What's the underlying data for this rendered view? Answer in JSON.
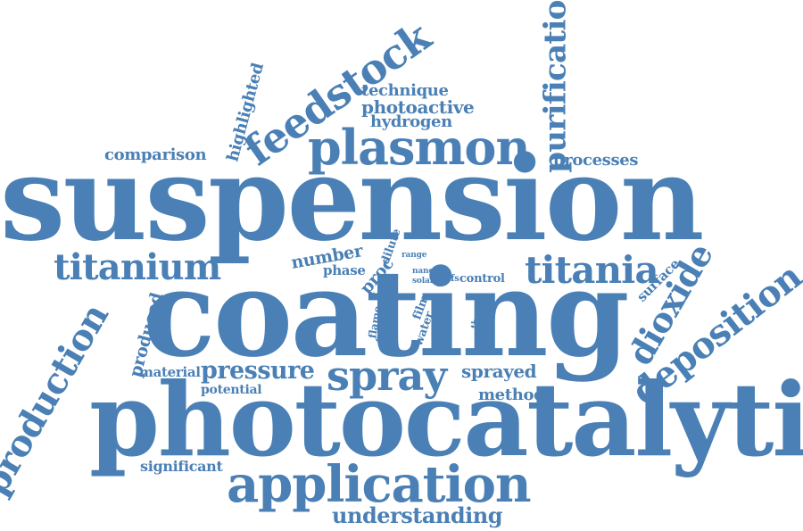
{
  "word_cloud": {
    "text_color": "#4a80b5",
    "background": "#ffffff",
    "words": {
      "suspension": "suspension",
      "coating": "coating",
      "photocatalytic": "photocatalytic",
      "application": "application",
      "plasmon": "plasmon",
      "feedstock": "feedstock",
      "purification": "purification",
      "titanium": "titanium",
      "titania": "titania",
      "production": "production",
      "deposition": "deposition",
      "dioxide": "dioxide",
      "spray": "spray",
      "pressure": "pressure",
      "understanding": "understanding",
      "comparison": "comparison",
      "highlighted": "highlighted",
      "technique": "technique",
      "photoactive": "photoactive",
      "hydrogen": "hydrogen",
      "processes": "processes",
      "number": "number",
      "phase": "phase",
      "proc": "proc",
      "dilute": "dilute",
      "range": "range",
      "nano": "nano",
      "solar": "solar",
      "hvsfs": "hvsfs",
      "control": "control",
      "surface": "surface",
      "produced": "produced",
      "material": "material",
      "potential": "potential",
      "sprayed": "sprayed",
      "method": "method",
      "significant": "significant",
      "flame": "flame",
      "cost": "cost",
      "film": "film",
      "water": "water",
      "thesis": "thesis"
    }
  }
}
